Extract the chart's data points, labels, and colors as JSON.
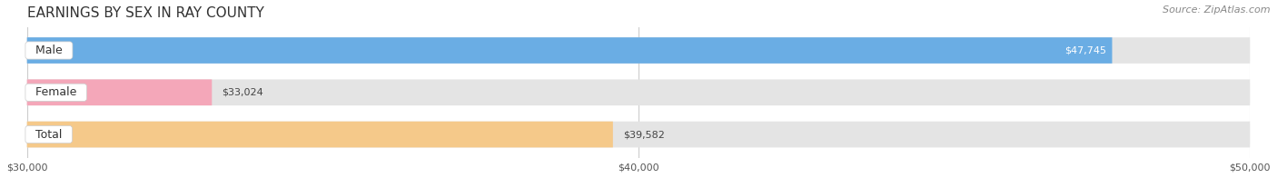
{
  "title": "EARNINGS BY SEX IN RAY COUNTY",
  "source": "Source: ZipAtlas.com",
  "categories": [
    "Male",
    "Female",
    "Total"
  ],
  "values": [
    47745,
    33024,
    39582
  ],
  "bar_colors": [
    "#6aade4",
    "#f4a7b9",
    "#f5c98a"
  ],
  "label_values": [
    "$47,745",
    "$33,024",
    "$39,582"
  ],
  "label_colors": [
    "#ffffff",
    "#555555",
    "#555555"
  ],
  "x_min": 30000,
  "x_max": 50000,
  "x_ticks": [
    30000,
    40000,
    50000
  ],
  "x_tick_labels": [
    "$30,000",
    "$40,000",
    "$50,000"
  ],
  "background_color": "#ffffff",
  "bar_bg_color": "#e8e8e8",
  "title_fontsize": 11,
  "source_fontsize": 8,
  "label_fontsize": 8,
  "category_fontsize": 9
}
